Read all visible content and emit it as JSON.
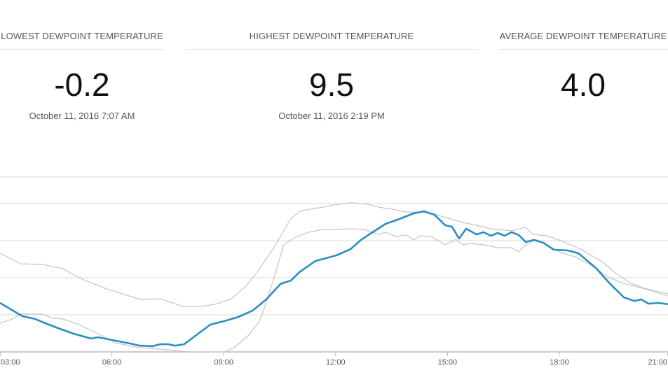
{
  "stats": [
    {
      "title": "LOWEST DEWPOINT TEMPERATURE",
      "value": "-0.2",
      "date": "October 11, 2016 7:07 AM"
    },
    {
      "title": "HIGHEST DEWPOINT TEMPERATURE",
      "value": "9.5",
      "date": "October 11, 2016 2:19 PM"
    },
    {
      "title": "AVERAGE DEWPOINT TEMPERATURE",
      "value": "4.0",
      "date": ""
    }
  ],
  "colors": {
    "main_series": "#2a8fc0",
    "comparison_series": "#c9c3c5",
    "grid": "#e6e6e6",
    "axis": "#bbbbbb"
  },
  "chart_data": {
    "type": "line",
    "xlabel": "",
    "ylabel": "",
    "xlim": [
      3,
      20.91
    ],
    "ylim": [
      0,
      11.8
    ],
    "grid": true,
    "y_grid": [
      2.5,
      5,
      7.5,
      10,
      11.8
    ],
    "x_ticks": [
      3,
      6,
      9,
      12,
      15,
      18,
      21
    ],
    "x_tick_labels": [
      "03:00",
      "06:00",
      "09:00",
      "12:00",
      "15:00",
      "18:00",
      "21:00"
    ],
    "series": [
      {
        "role": "comparison-upper",
        "x": [
          3.0,
          3.56,
          4.13,
          4.69,
          5.16,
          5.82,
          6.76,
          7.32,
          7.89,
          8.45,
          8.83,
          9.2,
          9.58,
          9.95,
          10.33,
          10.61,
          10.8,
          11.08,
          11.65,
          12.02,
          12.4,
          12.77,
          13.15,
          13.53,
          13.9,
          14.28,
          14.65,
          15.22,
          15.41,
          15.78,
          16.16,
          16.72,
          17.1,
          17.29,
          17.66,
          18.04,
          18.6,
          19.17,
          19.54,
          19.92,
          20.29,
          20.91
        ],
        "y": [
          6.65,
          5.94,
          5.9,
          5.61,
          4.95,
          4.29,
          3.54,
          3.58,
          3.07,
          3.07,
          3.25,
          3.58,
          4.39,
          5.57,
          6.98,
          8.16,
          9.01,
          9.53,
          9.76,
          9.95,
          10.05,
          10.0,
          9.76,
          9.62,
          9.43,
          9.43,
          9.29,
          8.87,
          8.73,
          8.54,
          8.3,
          8.16,
          8.4,
          7.92,
          7.83,
          7.5,
          6.89,
          6.04,
          5.24,
          4.62,
          4.29,
          3.92
        ]
      },
      {
        "role": "comparison-lower",
        "x": [
          3.0,
          3.28,
          3.56,
          4.13,
          4.41,
          4.69,
          5.07,
          5.44,
          5.82,
          6.1,
          6.76,
          7.51,
          8.08,
          9.02,
          9.3,
          9.67,
          9.95,
          10.14,
          10.33,
          10.61,
          10.89,
          11.27,
          11.65,
          12.02,
          12.4,
          12.77,
          13.15,
          13.34,
          13.62,
          13.9,
          14.09,
          14.28,
          14.56,
          14.94,
          15.22,
          15.41,
          15.59,
          15.97,
          16.35,
          16.72,
          16.91,
          17.1,
          17.38,
          17.66,
          18.04,
          18.41,
          18.79,
          19.35,
          19.73,
          20.29,
          20.91
        ],
        "y": [
          1.93,
          2.17,
          2.55,
          2.55,
          2.27,
          2.22,
          1.89,
          1.46,
          0.99,
          0.61,
          0.28,
          0.14,
          0,
          0,
          0.33,
          1.13,
          2.03,
          3.3,
          4.86,
          7.22,
          7.69,
          8.07,
          8.25,
          8.25,
          8.3,
          8.25,
          7.92,
          8.07,
          7.78,
          7.88,
          7.55,
          7.83,
          7.78,
          7.22,
          7.59,
          7.22,
          7.31,
          7.22,
          7.03,
          7.03,
          6.75,
          7.22,
          7.55,
          7.22,
          6.7,
          6.42,
          5.94,
          4.99,
          4.62,
          4.25,
          3.77
        ]
      },
      {
        "role": "main",
        "x": [
          3.0,
          3.6,
          3.94,
          4.22,
          4.6,
          4.97,
          5.44,
          5.63,
          5.91,
          6.48,
          6.76,
          7.1,
          7.29,
          7.51,
          7.7,
          7.94,
          8.64,
          9.02,
          9.39,
          9.77,
          10.14,
          10.52,
          10.8,
          11.03,
          11.46,
          12.02,
          12.4,
          12.68,
          12.96,
          13.34,
          13.71,
          14.09,
          14.37,
          14.65,
          14.94,
          15.12,
          15.31,
          15.5,
          15.78,
          15.97,
          16.16,
          16.35,
          16.53,
          16.72,
          16.91,
          17.1,
          17.32,
          17.57,
          17.85,
          18.23,
          18.51,
          18.98,
          19.35,
          19.73,
          20.01,
          20.2,
          20.39,
          20.67,
          20.91
        ],
        "y": [
          3.3,
          2.41,
          2.22,
          1.93,
          1.56,
          1.23,
          0.9,
          0.99,
          0.85,
          0.57,
          0.42,
          0.38,
          0.52,
          0.52,
          0.42,
          0.52,
          1.84,
          2.08,
          2.36,
          2.78,
          3.54,
          4.58,
          4.81,
          5.38,
          6.13,
          6.51,
          6.93,
          7.55,
          8.02,
          8.63,
          8.96,
          9.34,
          9.48,
          9.25,
          8.54,
          8.44,
          7.64,
          8.3,
          7.92,
          8.07,
          7.83,
          8.02,
          7.83,
          8.07,
          7.88,
          7.41,
          7.55,
          7.36,
          6.89,
          6.84,
          6.65,
          5.66,
          4.62,
          3.68,
          3.44,
          3.54,
          3.25,
          3.3,
          3.21
        ]
      }
    ]
  }
}
